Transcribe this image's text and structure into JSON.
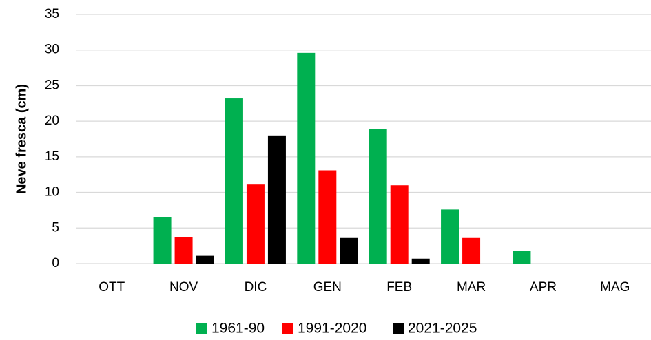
{
  "chart_data": {
    "type": "bar",
    "y_label": "Neve fresca (cm)",
    "categories": [
      "OTT",
      "NOV",
      "DIC",
      "GEN",
      "FEB",
      "MAR",
      "APR",
      "MAG"
    ],
    "series": [
      {
        "name": "1961-90",
        "color": "#00b050",
        "values": [
          0,
          6.5,
          23.2,
          29.6,
          18.9,
          7.6,
          1.8,
          0
        ]
      },
      {
        "name": "1991-2020",
        "color": "#ff0000",
        "values": [
          0,
          3.7,
          11.1,
          13.1,
          11.0,
          3.6,
          0,
          0
        ]
      },
      {
        "name": "2021-2025",
        "color": "#000000",
        "values": [
          0,
          1.1,
          18.0,
          3.6,
          0.7,
          0,
          0,
          0
        ]
      }
    ],
    "ylim": [
      0,
      35
    ],
    "yticks": [
      0,
      5,
      10,
      15,
      20,
      25,
      30,
      35
    ],
    "grid": true,
    "legend": "bottom"
  }
}
